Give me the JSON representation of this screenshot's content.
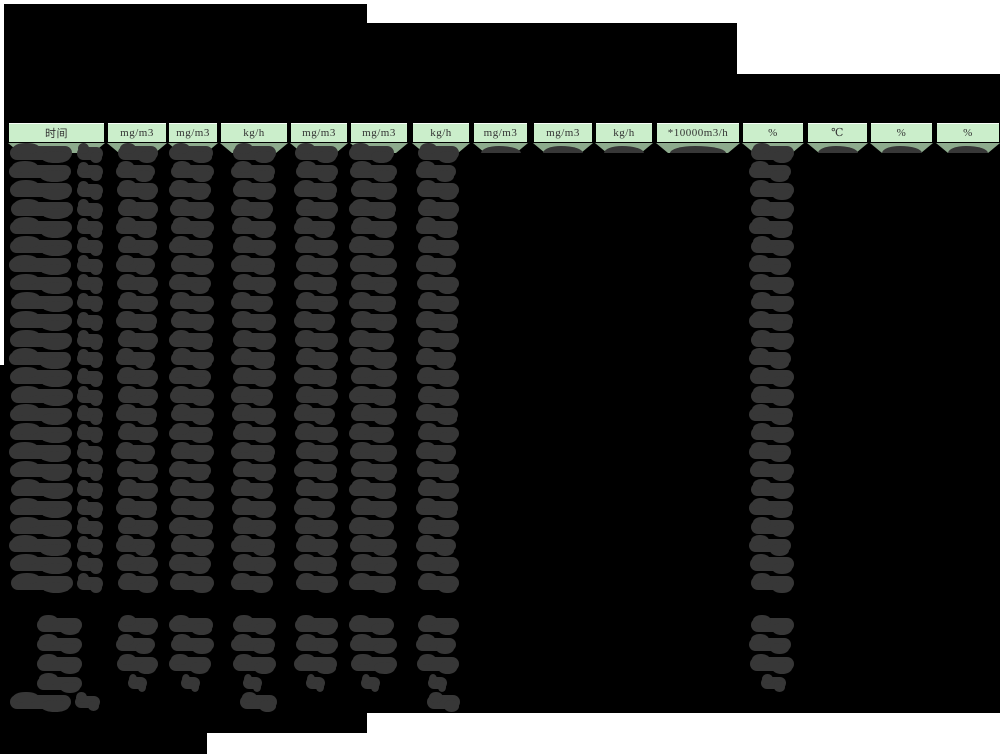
{
  "document": {
    "description": "scanned monitoring-report table page with all content blacked out (redacted)",
    "table": {
      "unit_header": [
        "时间",
        "mg/m3",
        "mg/m3",
        "kg/h",
        "mg/m3",
        "mg/m3",
        "kg/h",
        "mg/m3",
        "mg/m3",
        "kg/h",
        "*10000m3/h",
        "%",
        "℃",
        "%",
        "%"
      ],
      "data_row_count": 24,
      "summary_row_count": 4,
      "limit_row_count": 1,
      "values_redacted": true
    },
    "colors": {
      "page_bg": "#ffffff",
      "redaction_block": "#000000",
      "redaction_scribble": "#373737",
      "header_bg": "#cbeecb",
      "header_band_bg": "#8dab8d",
      "header_text": "#333333"
    }
  }
}
